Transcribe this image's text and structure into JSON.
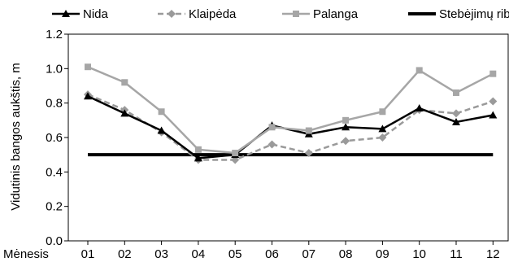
{
  "chart_data": {
    "type": "line",
    "x_axis_label": "Mėnesis",
    "y_axis_label": "Vidutinis bangos aukštis, m",
    "categories": [
      "01",
      "02",
      "03",
      "04",
      "05",
      "06",
      "07",
      "08",
      "09",
      "10",
      "11",
      "12"
    ],
    "ylim": [
      0.0,
      1.2
    ],
    "y_ticks": [
      "0.0",
      "0.2",
      "0.4",
      "0.6",
      "0.8",
      "1.0",
      "1.2"
    ],
    "grid": false,
    "legend_position": "top",
    "series": [
      {
        "name": "Nida",
        "color": "#000000",
        "line_style": "solid",
        "marker": "triangle",
        "values": [
          0.84,
          0.74,
          0.64,
          0.48,
          0.5,
          0.67,
          0.62,
          0.66,
          0.65,
          0.77,
          0.69,
          0.73
        ]
      },
      {
        "name": "Klaipėda",
        "color": "#9a9a9a",
        "line_style": "dashed",
        "marker": "diamond",
        "values": [
          0.85,
          0.76,
          0.63,
          0.47,
          0.47,
          0.56,
          0.51,
          0.58,
          0.6,
          0.76,
          0.74,
          0.81
        ]
      },
      {
        "name": "Palanga",
        "color": "#a6a6a6",
        "line_style": "solid",
        "marker": "square",
        "values": [
          1.01,
          0.92,
          0.75,
          0.53,
          0.51,
          0.66,
          0.64,
          0.7,
          0.75,
          0.99,
          0.86,
          0.97
        ]
      },
      {
        "name": "Stebėjimų riba",
        "color": "#000000",
        "line_style": "thick",
        "marker": "none",
        "values": [
          0.5,
          0.5,
          0.5,
          0.5,
          0.5,
          0.5,
          0.5,
          0.5,
          0.5,
          0.5,
          0.5,
          0.5
        ]
      }
    ]
  }
}
